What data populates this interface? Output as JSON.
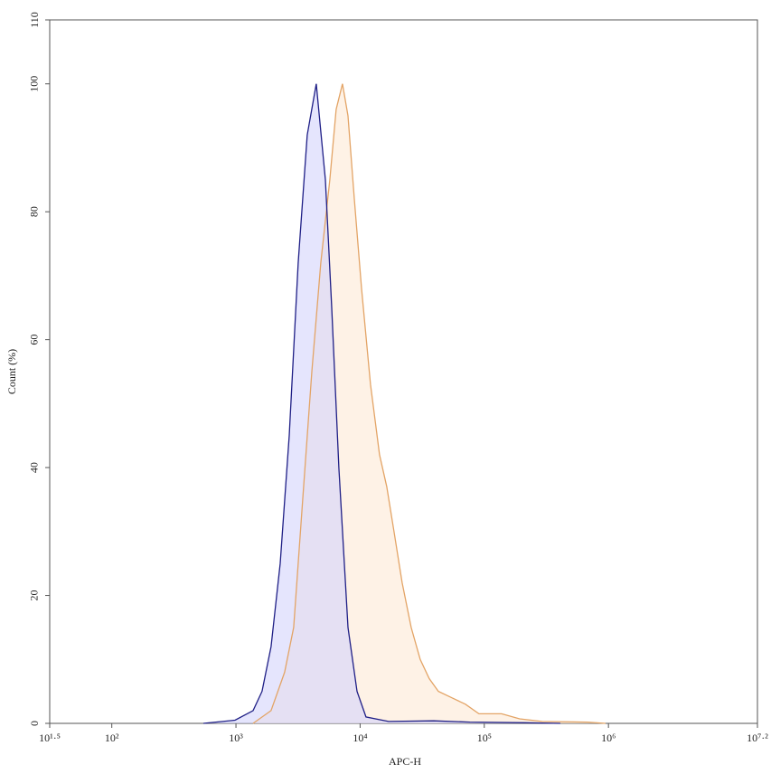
{
  "chart_data": {
    "type": "histogram-overlay",
    "x_label": "APC-H",
    "y_label": "Count (%)",
    "xscale": "log",
    "xlim": [
      31.6227766,
      15848931.92
    ],
    "xticks": [
      {
        "value": 31.6227766,
        "label": "10¹·⁵"
      },
      {
        "value": 100,
        "label": "10²"
      },
      {
        "value": 1000,
        "label": "10³"
      },
      {
        "value": 10000,
        "label": "10⁴"
      },
      {
        "value": 100000,
        "label": "10⁵"
      },
      {
        "value": 1000000,
        "label": "10⁶"
      },
      {
        "value": 15848931.92,
        "label": "10⁷·²"
      }
    ],
    "ylim": [
      0,
      110
    ],
    "yticks": [
      0,
      20,
      40,
      60,
      80,
      100,
      110
    ],
    "series": [
      {
        "color": "#e3a466",
        "fill": "#fde9d6",
        "x": [
          1373,
          1919,
          2466,
          2917,
          3450,
          4083,
          4820,
          5702,
          6412,
          7211,
          7980,
          8974,
          10260,
          12130,
          14330,
          16400,
          18750,
          21790,
          25760,
          30480,
          36060,
          42660,
          54830,
          70470,
          90570,
          137700,
          192600,
          293100,
          676100,
          946200
        ],
        "values": [
          0,
          2,
          8,
          15,
          35,
          55,
          72,
          85,
          96,
          100,
          95,
          82,
          68,
          53,
          42,
          37,
          30,
          22,
          15,
          10,
          7,
          5,
          4,
          3,
          1.5,
          1.5,
          0.7,
          0.3,
          0.2,
          0
        ]
      },
      {
        "color": "#1f1f86",
        "fill": "#d4d4fb",
        "x": [
          546,
          982,
          1373,
          1622,
          1919,
          2270,
          2685,
          3170,
          3750,
          4436,
          5248,
          5902,
          6745,
          7980,
          9440,
          11150,
          16950,
          39170,
          76560,
          209400,
          409300
        ],
        "values": [
          0,
          0.5,
          2,
          5,
          12,
          25,
          45,
          72,
          92,
          100,
          85,
          65,
          40,
          15,
          5,
          1,
          0.3,
          0.4,
          0.2,
          0.1,
          0
        ]
      }
    ]
  }
}
